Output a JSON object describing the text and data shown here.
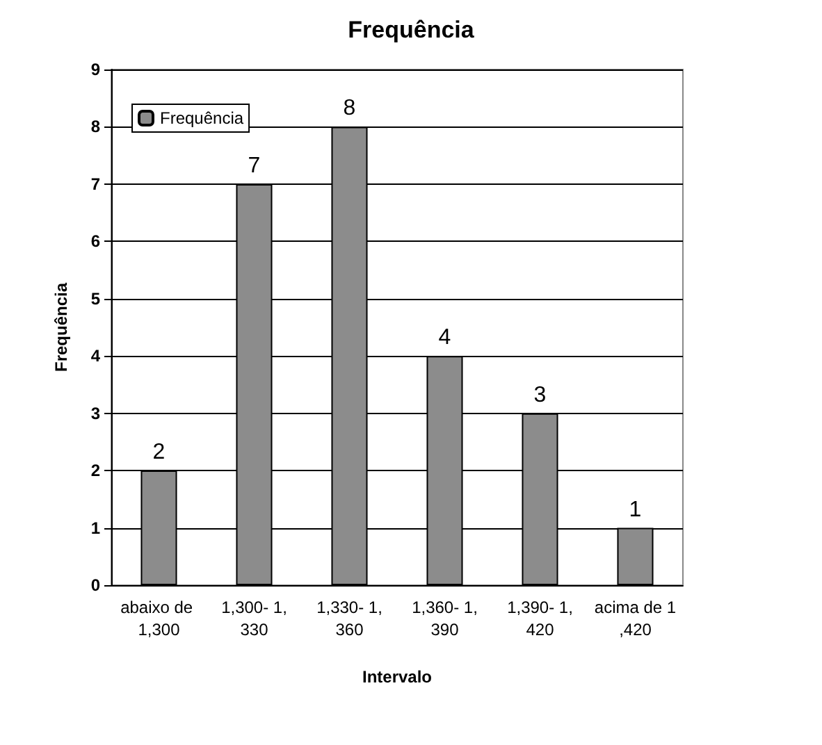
{
  "chart_data": {
    "type": "bar",
    "title": "Frequência",
    "xlabel": "Intervalo",
    "ylabel": "Frequência",
    "categories": [
      "abaixo de 1,300",
      "1,300- 1,330",
      "1,330- 1,360",
      "1,360- 1,390",
      "1,390- 1,420",
      "acima de 1,420"
    ],
    "series": [
      {
        "name": "Frequência",
        "color": "#8c8c8c",
        "values": [
          2,
          7,
          8,
          4,
          3,
          1
        ]
      }
    ],
    "ylim": [
      0,
      9
    ],
    "yticks": [
      0,
      1,
      2,
      3,
      4,
      5,
      6,
      7,
      8,
      9
    ],
    "grid": "y",
    "legend": "top left",
    "data_labels": true
  }
}
